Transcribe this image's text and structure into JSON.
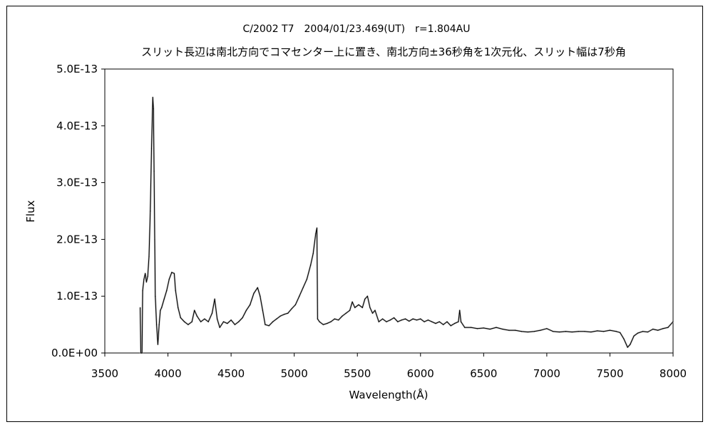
{
  "chart_data": {
    "type": "line",
    "title": "C/2002 T7　2004/01/23.469(UT)　r=1.804AU",
    "subtitle": "スリット長辺は南北方向でコマセンター上に置き、南北方向±36秒角を1次元化、スリット幅は7秒角",
    "xlabel": "Wavelength(Å)",
    "ylabel": "Flux",
    "xlim": [
      3500,
      8000
    ],
    "ylim": [
      0,
      5e-13
    ],
    "x_ticks": [
      3500,
      4000,
      4500,
      5000,
      5500,
      6000,
      6500,
      7000,
      7500,
      8000
    ],
    "x_tick_labels": [
      "3500",
      "4000",
      "4500",
      "5000",
      "5500",
      "6000",
      "6500",
      "7000",
      "7500",
      "8000"
    ],
    "y_ticks": [
      0,
      1e-13,
      2e-13,
      3e-13,
      4e-13,
      5e-13
    ],
    "y_tick_labels": [
      "0.0E+00",
      "1.0E-13",
      "2.0E-13",
      "3.0E-13",
      "4.0E-13",
      "5.0E-13"
    ],
    "grid": false,
    "legend": "none",
    "series": [
      {
        "color": "#000000",
        "points": [
          [
            3780,
            8e-14
          ],
          [
            3785,
            0.0
          ],
          [
            3795,
            0.0
          ],
          [
            3800,
            1.1e-13
          ],
          [
            3810,
            1.3e-13
          ],
          [
            3820,
            1.4e-13
          ],
          [
            3830,
            1.25e-13
          ],
          [
            3840,
            1.35e-13
          ],
          [
            3850,
            1.7e-13
          ],
          [
            3860,
            2.5e-13
          ],
          [
            3870,
            3.6e-13
          ],
          [
            3880,
            4.5e-13
          ],
          [
            3885,
            4.3e-13
          ],
          [
            3890,
            3.2e-13
          ],
          [
            3895,
            2e-13
          ],
          [
            3900,
            1e-13
          ],
          [
            3910,
            5e-14
          ],
          [
            3920,
            1.5e-14
          ],
          [
            3930,
            5e-14
          ],
          [
            3940,
            7.5e-14
          ],
          [
            3950,
            8e-14
          ],
          [
            3970,
            9.5e-14
          ],
          [
            3990,
            1.1e-13
          ],
          [
            4010,
            1.3e-13
          ],
          [
            4030,
            1.42e-13
          ],
          [
            4050,
            1.4e-13
          ],
          [
            4060,
            1.1e-13
          ],
          [
            4080,
            8e-14
          ],
          [
            4100,
            6.2e-14
          ],
          [
            4130,
            5.5e-14
          ],
          [
            4160,
            5e-14
          ],
          [
            4190,
            5.5e-14
          ],
          [
            4210,
            7.5e-14
          ],
          [
            4230,
            6.5e-14
          ],
          [
            4260,
            5.5e-14
          ],
          [
            4290,
            6e-14
          ],
          [
            4320,
            5.5e-14
          ],
          [
            4350,
            7e-14
          ],
          [
            4370,
            9.5e-14
          ],
          [
            4390,
            6e-14
          ],
          [
            4410,
            4.5e-14
          ],
          [
            4440,
            5.5e-14
          ],
          [
            4470,
            5.2e-14
          ],
          [
            4500,
            5.8e-14
          ],
          [
            4530,
            5e-14
          ],
          [
            4560,
            5.5e-14
          ],
          [
            4590,
            6.2e-14
          ],
          [
            4620,
            7.5e-14
          ],
          [
            4650,
            8.5e-14
          ],
          [
            4680,
            1.05e-13
          ],
          [
            4710,
            1.15e-13
          ],
          [
            4730,
            1e-13
          ],
          [
            4750,
            7.5e-14
          ],
          [
            4770,
            5e-14
          ],
          [
            4800,
            4.8e-14
          ],
          [
            4830,
            5.5e-14
          ],
          [
            4860,
            6e-14
          ],
          [
            4890,
            6.5e-14
          ],
          [
            4920,
            6.8e-14
          ],
          [
            4950,
            7e-14
          ],
          [
            4980,
            7.8e-14
          ],
          [
            5010,
            8.5e-14
          ],
          [
            5040,
            1e-13
          ],
          [
            5070,
            1.15e-13
          ],
          [
            5100,
            1.3e-13
          ],
          [
            5130,
            1.55e-13
          ],
          [
            5150,
            1.75e-13
          ],
          [
            5170,
            2.1e-13
          ],
          [
            5180,
            2.2e-13
          ],
          [
            5185,
            6e-14
          ],
          [
            5200,
            5.5e-14
          ],
          [
            5230,
            5e-14
          ],
          [
            5260,
            5.2e-14
          ],
          [
            5290,
            5.5e-14
          ],
          [
            5320,
            6e-14
          ],
          [
            5350,
            5.8e-14
          ],
          [
            5380,
            6.5e-14
          ],
          [
            5410,
            7e-14
          ],
          [
            5440,
            7.5e-14
          ],
          [
            5460,
            9e-14
          ],
          [
            5480,
            8e-14
          ],
          [
            5510,
            8.5e-14
          ],
          [
            5540,
            8e-14
          ],
          [
            5560,
            9.5e-14
          ],
          [
            5580,
            1e-13
          ],
          [
            5600,
            8e-14
          ],
          [
            5620,
            7e-14
          ],
          [
            5640,
            7.5e-14
          ],
          [
            5670,
            5.5e-14
          ],
          [
            5700,
            6e-14
          ],
          [
            5730,
            5.5e-14
          ],
          [
            5760,
            5.8e-14
          ],
          [
            5790,
            6.2e-14
          ],
          [
            5820,
            5.5e-14
          ],
          [
            5850,
            5.8e-14
          ],
          [
            5880,
            6e-14
          ],
          [
            5910,
            5.6e-14
          ],
          [
            5940,
            6e-14
          ],
          [
            5970,
            5.8e-14
          ],
          [
            6000,
            6e-14
          ],
          [
            6030,
            5.5e-14
          ],
          [
            6060,
            5.8e-14
          ],
          [
            6090,
            5.5e-14
          ],
          [
            6120,
            5.2e-14
          ],
          [
            6150,
            5.5e-14
          ],
          [
            6180,
            5e-14
          ],
          [
            6210,
            5.5e-14
          ],
          [
            6240,
            4.8e-14
          ],
          [
            6270,
            5.2e-14
          ],
          [
            6300,
            5.5e-14
          ],
          [
            6310,
            7.5e-14
          ],
          [
            6320,
            5.5e-14
          ],
          [
            6350,
            4.5e-14
          ],
          [
            6400,
            4.5e-14
          ],
          [
            6450,
            4.3e-14
          ],
          [
            6500,
            4.4e-14
          ],
          [
            6550,
            4.2e-14
          ],
          [
            6600,
            4.5e-14
          ],
          [
            6650,
            4.2e-14
          ],
          [
            6700,
            4e-14
          ],
          [
            6750,
            4e-14
          ],
          [
            6800,
            3.8e-14
          ],
          [
            6850,
            3.7e-14
          ],
          [
            6900,
            3.8e-14
          ],
          [
            6950,
            4e-14
          ],
          [
            7000,
            4.3e-14
          ],
          [
            7050,
            3.8e-14
          ],
          [
            7100,
            3.7e-14
          ],
          [
            7150,
            3.8e-14
          ],
          [
            7200,
            3.7e-14
          ],
          [
            7250,
            3.8e-14
          ],
          [
            7300,
            3.8e-14
          ],
          [
            7350,
            3.7e-14
          ],
          [
            7400,
            3.9e-14
          ],
          [
            7450,
            3.8e-14
          ],
          [
            7500,
            4e-14
          ],
          [
            7550,
            3.8e-14
          ],
          [
            7580,
            3.6e-14
          ],
          [
            7610,
            2.5e-14
          ],
          [
            7640,
            1e-14
          ],
          [
            7660,
            1.5e-14
          ],
          [
            7690,
            3e-14
          ],
          [
            7720,
            3.5e-14
          ],
          [
            7760,
            3.8e-14
          ],
          [
            7800,
            3.7e-14
          ],
          [
            7840,
            4.2e-14
          ],
          [
            7880,
            4e-14
          ],
          [
            7920,
            4.3e-14
          ],
          [
            7960,
            4.5e-14
          ],
          [
            8000,
            5.5e-14
          ]
        ]
      }
    ]
  }
}
